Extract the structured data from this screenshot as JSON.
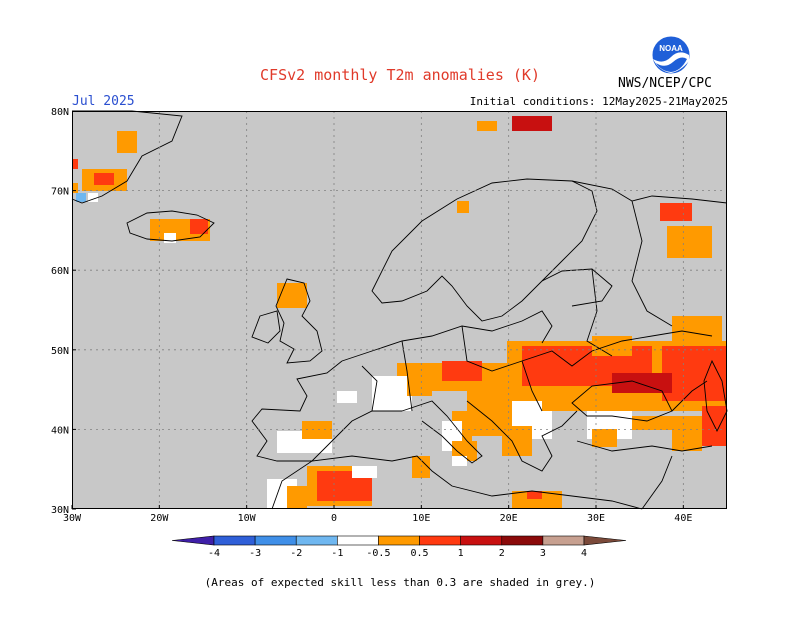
{
  "header": {
    "title": "CFSv2 monthly T2m anomalies (K)",
    "month": "Jul 2025",
    "initial_conditions": "Initial conditions: 12May2025-21May2025",
    "agency": "NWS/NCEP/CPC",
    "logo_text": "NOAA"
  },
  "map": {
    "lat_labels": [
      "80N",
      "70N",
      "60N",
      "50N",
      "40N",
      "30N"
    ],
    "lon_labels": [
      "30W",
      "20W",
      "10W",
      "0",
      "10E",
      "20E",
      "30E",
      "40E"
    ],
    "lat_values": [
      80,
      70,
      60,
      50,
      40,
      30
    ],
    "lon_values": [
      -30,
      -20,
      -10,
      0,
      10,
      20,
      30,
      40
    ],
    "lon_range": [
      -30,
      45
    ],
    "lat_range": [
      30,
      80
    ],
    "grid": true,
    "background_color": "#c8c8c8"
  },
  "legend": {
    "labels": [
      "-4",
      "-3",
      "-2",
      "-1",
      "-0.5",
      "0.5",
      "1",
      "2",
      "3",
      "4"
    ],
    "colors": [
      "#3f1fa8",
      "#2f5fd8",
      "#3f8fe8",
      "#6fb7f0",
      "#ffffff",
      "#ff9a00",
      "#ff3a10",
      "#c81010",
      "#8b0a0a",
      "#c7a090",
      "#7b4a3a"
    ]
  },
  "footnote": "(Areas of expected skill less than 0.3 are shaded in grey.)"
}
